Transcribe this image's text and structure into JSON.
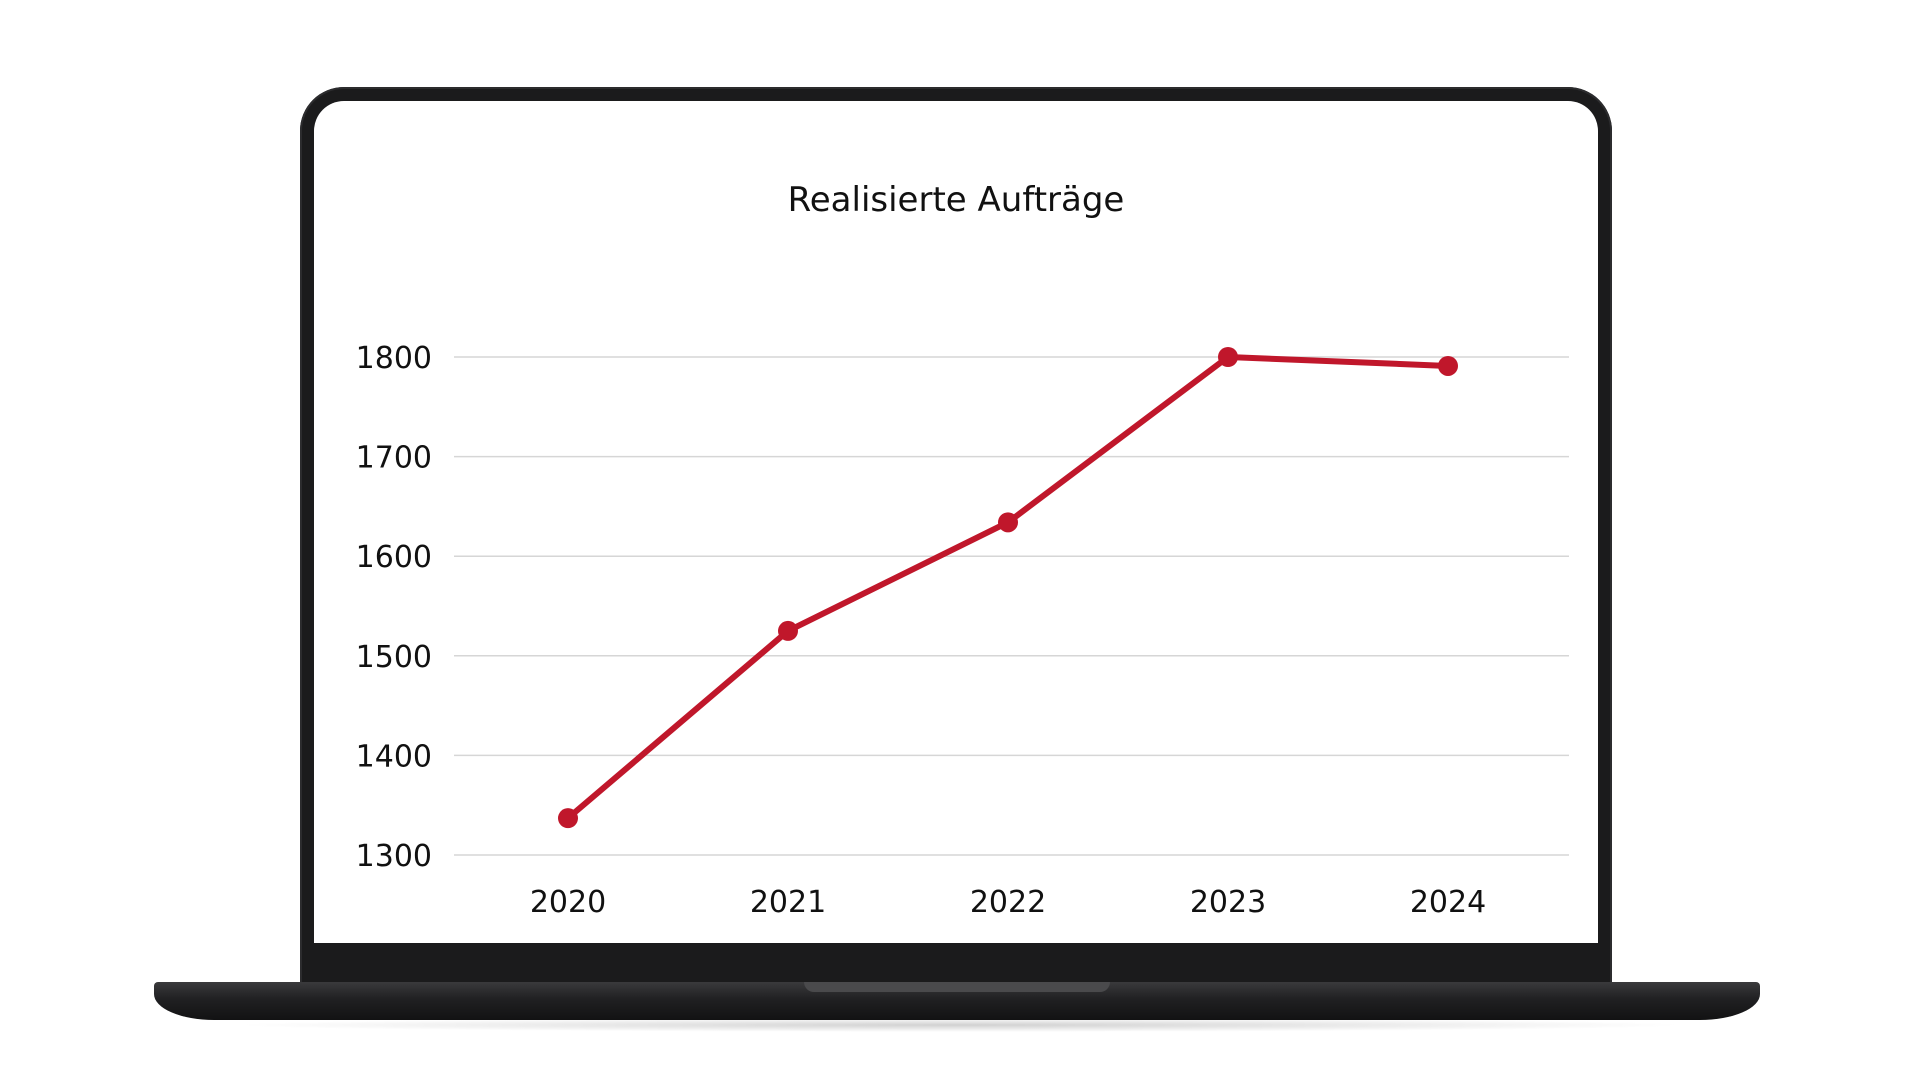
{
  "chart_data": {
    "type": "line",
    "title": "Realisierte Aufträge",
    "xlabel": "",
    "ylabel": "",
    "categories": [
      "2020",
      "2021",
      "2022",
      "2023",
      "2024"
    ],
    "series": [
      {
        "values": [
          1337,
          1525,
          1634,
          1800,
          1791
        ],
        "color": "#c0172b"
      }
    ],
    "ylim": [
      1300,
      1800
    ],
    "yticks": [
      "1300",
      "1400",
      "1500",
      "1600",
      "1700",
      "1800"
    ],
    "grid": true,
    "legend": "none"
  },
  "colors": {
    "line": "#c0172b",
    "grid": "#d6d6d6",
    "device_frame": "#1b1b1c"
  }
}
